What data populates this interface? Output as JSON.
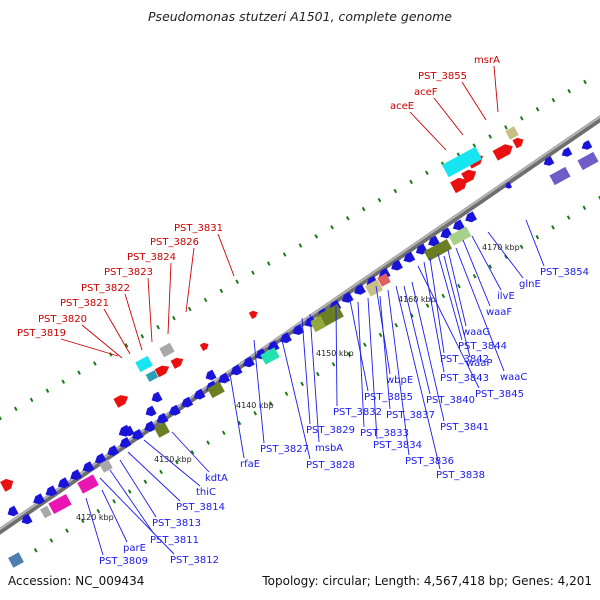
{
  "title": "Pseudomonas stutzeri A1501, complete genome",
  "footer": {
    "accession": "Accession: NC_009434",
    "topology": "Topology: circular; Length: 4,567,418 bp; Genes: 4,201"
  },
  "colors": {
    "backbone": "#8c8c8c",
    "forward_gene": "#e8110f",
    "reverse_gene": "#1a14d8",
    "forward_label": "#cc0000",
    "reverse_label": "#1a1aee",
    "tick": "#1a7a1a",
    "cds_cyan": "#17e6f0",
    "cds_magenta": "#e916b2",
    "cds_purple": "#6f5cc8",
    "cds_olive": "#6b7f22",
    "cds_tan": "#c8bf86",
    "cds_steel": "#4f7fae",
    "cds_teal": "#22e0b0",
    "cds_grey": "#a8a8a8"
  },
  "ticks": [
    "4120 kbp",
    "4130 kbp",
    "4140 kbp",
    "4150 kbp",
    "4160 kbp",
    "4170 kbp"
  ],
  "forward_labels": [
    "msrA",
    "PST_3855",
    "aceF",
    "aceE",
    "PST_3831",
    "PST_3826",
    "PST_3824",
    "PST_3823",
    "PST_3822",
    "PST_3821",
    "PST_3820",
    "PST_3819"
  ],
  "reverse_labels": [
    "PST_3854",
    "glnE",
    "ilvE",
    "waaF",
    "waaG",
    "PST_3844",
    "PST_3842",
    "waaP",
    "PST_3843",
    "waaC",
    "PST_3845",
    "wbpE",
    "PST_3840",
    "PST_3835",
    "PST_3832",
    "PST_3829",
    "PST_3833",
    "PST_3834",
    "PST_3837",
    "PST_3841",
    "PST_3836",
    "PST_3838",
    "msbA",
    "PST_3827",
    "PST_3828",
    "rfaE",
    "kdtA",
    "thiC",
    "PST_3814",
    "PST_3813",
    "PST_3811",
    "PST_3812",
    "parE",
    "PST_3809"
  ]
}
